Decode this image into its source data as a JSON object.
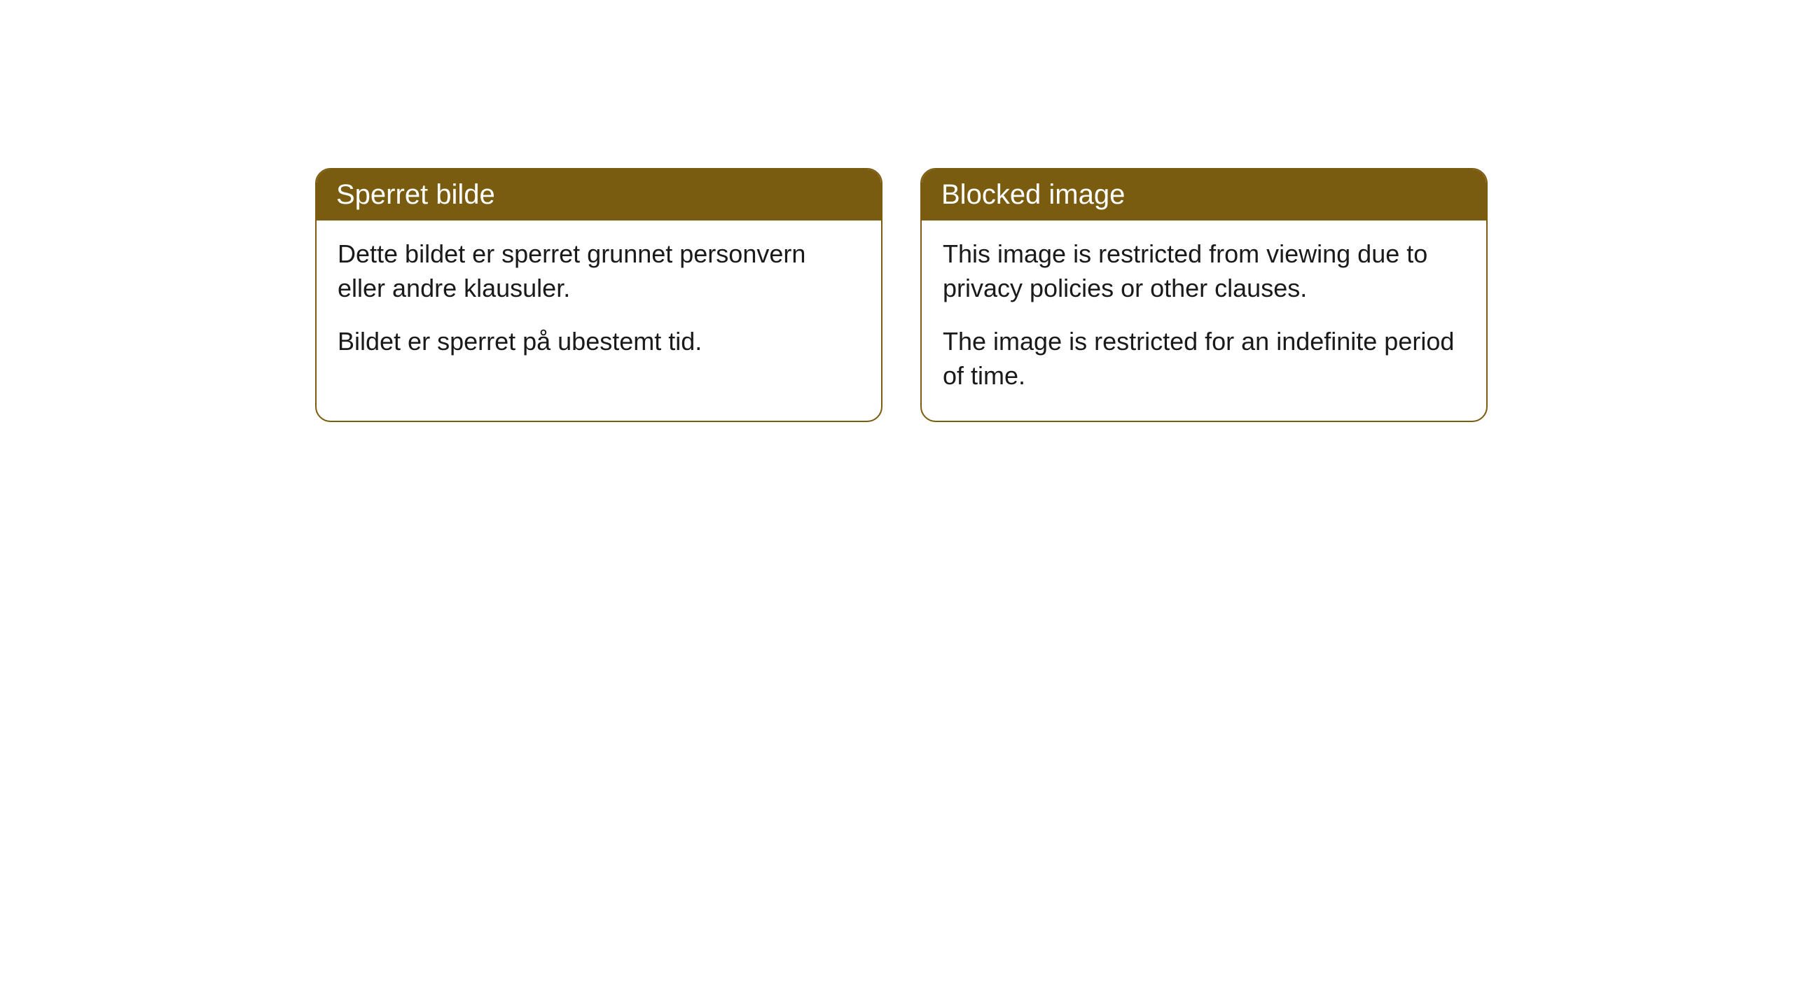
{
  "cards": [
    {
      "title": "Sperret bilde",
      "paragraph1": "Dette bildet er sperret grunnet personvern eller andre klausuler.",
      "paragraph2": "Bildet er sperret på ubestemt tid."
    },
    {
      "title": "Blocked image",
      "paragraph1": "This image is restricted from viewing due to privacy policies or other clauses.",
      "paragraph2": "The image is restricted for an indefinite period of time."
    }
  ],
  "style": {
    "header_background": "#7a5c10",
    "header_text_color": "#ffffff",
    "border_color": "#7a5c10",
    "card_background": "#ffffff",
    "body_text_color": "#1a1a1a",
    "border_radius": 22,
    "title_fontsize": 40,
    "body_fontsize": 36
  }
}
